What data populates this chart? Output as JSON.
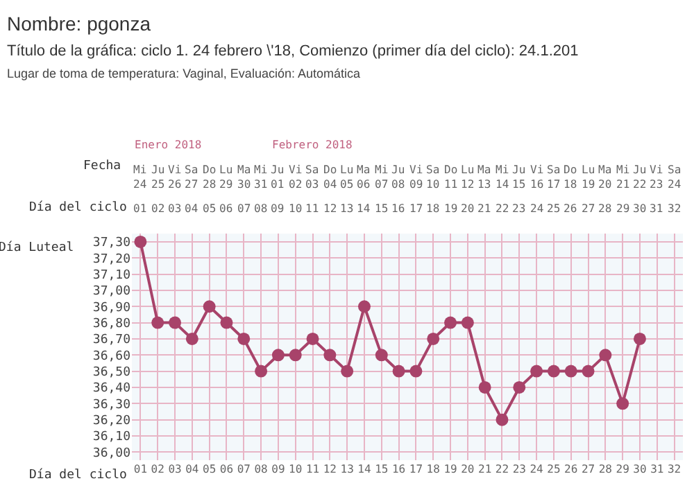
{
  "chart_data": {
    "type": "line",
    "title": "Nombre: pgonza",
    "subtitle": "Título de la gráfica: ciclo 1. 24 febrero \\'18, Comienzo (primer día del ciclo): 24.1.201",
    "annotations": [
      "Lugar de toma de temperatura: Vaginal, Evaluación: Automática",
      "Enero 2018",
      "Febrero 2018",
      "Mi\n24",
      "Ju\n25",
      "Vi\n26",
      "Sa\n27",
      "Do\n28",
      "Lu\n29",
      "Ma\n30",
      "Mi\n31",
      "Ju\n01",
      "Vi\n02",
      "Sa\n03",
      "Do\n04",
      "Lu\n05",
      "Ma\n06",
      "Mi\n07",
      "Ju\n08",
      "Vi\n09",
      "Sa\n10",
      "Do\n11",
      "Lu\n12",
      "Ma\n13",
      "Mi\n14",
      "Ju\n15",
      "Vi\n16",
      "Sa\n17",
      "Do\n18",
      "Lu\n19",
      "Ma\n20",
      "Mi\n21",
      "Ju\n22",
      "Vi\n23",
      "Sa\n24",
      "Fecha"
    ],
    "xlabel": "Día del ciclo",
    "ylabel": "Día Luteal",
    "categories": [
      "01",
      "02",
      "03",
      "04",
      "05",
      "06",
      "07",
      "08",
      "09",
      "10",
      "11",
      "12",
      "13",
      "14",
      "15",
      "16",
      "17",
      "18",
      "19",
      "20",
      "21",
      "22",
      "23",
      "24",
      "25",
      "26",
      "27",
      "28",
      "29",
      "30",
      "31",
      "32"
    ],
    "series": [
      {
        "color": "#a8436a",
        "values": [
          37.3,
          36.8,
          36.8,
          36.7,
          36.9,
          36.8,
          36.7,
          36.5,
          36.6,
          36.6,
          36.7,
          36.6,
          36.5,
          36.9,
          36.6,
          36.5,
          36.5,
          36.7,
          36.8,
          36.8,
          36.4,
          36.2,
          36.4,
          36.5,
          36.5,
          36.5,
          36.5,
          36.6,
          36.3,
          36.7,
          null,
          null
        ]
      }
    ],
    "ylim": [
      35.95,
      37.35
    ],
    "yticks": [
      {
        "value": 36.0,
        "label": "36,00"
      },
      {
        "value": 36.1,
        "label": "36,10"
      },
      {
        "value": 36.2,
        "label": "36,20"
      },
      {
        "value": 36.3,
        "label": "36,30"
      },
      {
        "value": 36.4,
        "label": "36,40"
      },
      {
        "value": 36.5,
        "label": "36,50"
      },
      {
        "value": 36.6,
        "label": "36,60"
      },
      {
        "value": 36.7,
        "label": "36,70"
      },
      {
        "value": 36.8,
        "label": "36,80"
      },
      {
        "value": 36.9,
        "label": "36,90"
      },
      {
        "value": 37.0,
        "label": "37,00"
      },
      {
        "value": 37.1,
        "label": "37,10"
      },
      {
        "value": 37.2,
        "label": "37,20"
      },
      {
        "value": 37.3,
        "label": "37,30"
      }
    ],
    "grid": true,
    "marker": "circle",
    "line_style": "solid"
  }
}
